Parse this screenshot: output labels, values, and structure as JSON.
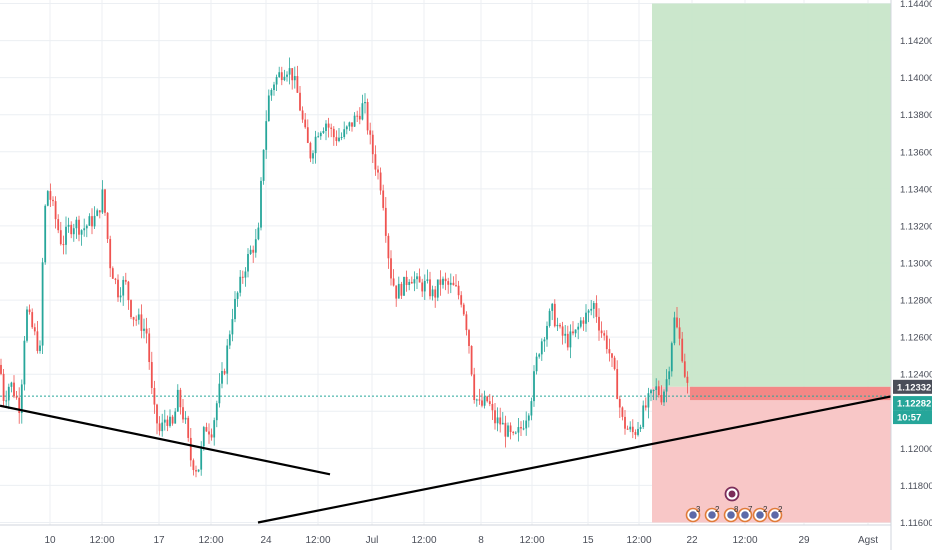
{
  "chart_data": {
    "type": "candlestick",
    "title": "",
    "instrument": "",
    "xlabel": "",
    "ylabel": "",
    "ylim": [
      1.116,
      1.144
    ],
    "grid": true,
    "y_ticks": [
      "1.11600",
      "1.11800",
      "1.12000",
      "1.12200",
      "1.12400",
      "1.12600",
      "1.12800",
      "1.13000",
      "1.13200",
      "1.13400",
      "1.13600",
      "1.13800",
      "1.14000",
      "1.14200",
      "1.14400"
    ],
    "x_ticks": [
      "10",
      "12:00",
      "17",
      "12:00",
      "24",
      "12:00",
      "Jul",
      "12:00",
      "8",
      "12:00",
      "15",
      "12:00",
      "22",
      "12:00",
      "29",
      "Agst"
    ],
    "price_path": [
      [
        0,
        1.1245
      ],
      [
        4,
        1.1226
      ],
      [
        10,
        1.1236
      ],
      [
        20,
        1.1222
      ],
      [
        26,
        1.1275
      ],
      [
        34,
        1.1262
      ],
      [
        40,
        1.1252
      ],
      [
        44,
        1.1325
      ],
      [
        48,
        1.134
      ],
      [
        55,
        1.1325
      ],
      [
        62,
        1.131
      ],
      [
        68,
        1.1318
      ],
      [
        75,
        1.1322
      ],
      [
        82,
        1.1318
      ],
      [
        90,
        1.1322
      ],
      [
        97,
        1.1325
      ],
      [
        103,
        1.1338
      ],
      [
        110,
        1.13
      ],
      [
        118,
        1.1285
      ],
      [
        125,
        1.129
      ],
      [
        132,
        1.1272
      ],
      [
        140,
        1.1268
      ],
      [
        147,
        1.1262
      ],
      [
        153,
        1.1222
      ],
      [
        160,
        1.1208
      ],
      [
        166,
        1.1218
      ],
      [
        172,
        1.121
      ],
      [
        178,
        1.1228
      ],
      [
        186,
        1.1212
      ],
      [
        190,
        1.1195
      ],
      [
        198,
        1.1188
      ],
      [
        205,
        1.1212
      ],
      [
        212,
        1.121
      ],
      [
        218,
        1.1228
      ],
      [
        225,
        1.1245
      ],
      [
        232,
        1.1272
      ],
      [
        240,
        1.1288
      ],
      [
        246,
        1.13
      ],
      [
        252,
        1.1308
      ],
      [
        258,
        1.1312
      ],
      [
        263,
        1.136
      ],
      [
        268,
        1.1388
      ],
      [
        274,
        1.1398
      ],
      [
        280,
        1.1402
      ],
      [
        286,
        1.1406
      ],
      [
        292,
        1.1402
      ],
      [
        298,
        1.139
      ],
      [
        304,
        1.1372
      ],
      [
        310,
        1.1358
      ],
      [
        318,
        1.1372
      ],
      [
        326,
        1.1376
      ],
      [
        334,
        1.1368
      ],
      [
        342,
        1.1368
      ],
      [
        350,
        1.1374
      ],
      [
        358,
        1.138
      ],
      [
        364,
        1.1386
      ],
      [
        370,
        1.1366
      ],
      [
        376,
        1.1352
      ],
      [
        382,
        1.134
      ],
      [
        390,
        1.1296
      ],
      [
        396,
        1.1284
      ],
      [
        404,
        1.1288
      ],
      [
        410,
        1.1294
      ],
      [
        418,
        1.1288
      ],
      [
        426,
        1.1288
      ],
      [
        434,
        1.1282
      ],
      [
        440,
        1.129
      ],
      [
        447,
        1.1288
      ],
      [
        455,
        1.1286
      ],
      [
        462,
        1.128
      ],
      [
        468,
        1.1262
      ],
      [
        474,
        1.123
      ],
      [
        480,
        1.1222
      ],
      [
        488,
        1.1226
      ],
      [
        494,
        1.1215
      ],
      [
        500,
        1.1214
      ],
      [
        508,
        1.1208
      ],
      [
        514,
        1.1204
      ],
      [
        522,
        1.1212
      ],
      [
        530,
        1.1224
      ],
      [
        538,
        1.1252
      ],
      [
        546,
        1.1266
      ],
      [
        552,
        1.1274
      ],
      [
        560,
        1.1262
      ],
      [
        568,
        1.1258
      ],
      [
        576,
        1.1262
      ],
      [
        582,
        1.127
      ],
      [
        588,
        1.1272
      ],
      [
        594,
        1.1278
      ],
      [
        600,
        1.1265
      ],
      [
        608,
        1.1255
      ],
      [
        616,
        1.1235
      ],
      [
        622,
        1.1215
      ],
      [
        628,
        1.121
      ],
      [
        634,
        1.1208
      ],
      [
        640,
        1.1215
      ],
      [
        648,
        1.1225
      ],
      [
        656,
        1.1232
      ],
      [
        662,
        1.1228
      ],
      [
        668,
        1.124
      ],
      [
        674,
        1.127
      ],
      [
        678,
        1.1262
      ],
      [
        682,
        1.1252
      ],
      [
        686,
        1.1236
      ],
      [
        690,
        1.1228
      ]
    ],
    "trendlines": [
      {
        "from": {
          "x": "start",
          "y": 1.1223
        },
        "to": {
          "x": "after 24",
          "y": 1.1186
        },
        "color": "#000000"
      },
      {
        "from": {
          "x": "before Jul",
          "y": 1.116
        },
        "to": {
          "x": "end",
          "y": 1.1228
        },
        "color": "#000000"
      }
    ],
    "position": {
      "entry": 1.12332,
      "stop_level": 1.12282,
      "target_level": 1.144,
      "stop_floor": 1.116
    },
    "price_line_dashed": 1.12282,
    "price_labels": {
      "entry_label": "1.12332",
      "current_label": "1.12282",
      "countdown_label": "10:57"
    },
    "event_markers": [
      "3",
      "3",
      "2",
      "8",
      "7",
      "2",
      "2"
    ],
    "colors": {
      "up": "#26a69a",
      "down": "#ef5350",
      "target_zone": "#c8e6c9",
      "stop_zone": "#f8c4c4",
      "entry_band": "#ef5350",
      "grid": "#eceff3",
      "axis_text": "#4a4e59"
    }
  }
}
